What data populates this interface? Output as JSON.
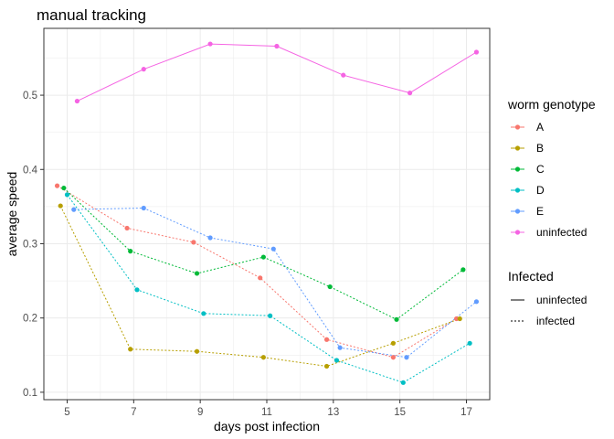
{
  "chart_data": {
    "type": "line",
    "title": "manual tracking",
    "xlabel": "days post infection",
    "ylabel": "average speed",
    "xlim": [
      4.3,
      17.7
    ],
    "ylim": [
      0.09,
      0.59
    ],
    "x_ticks": [
      5,
      7,
      9,
      11,
      13,
      15,
      17
    ],
    "y_ticks": [
      0.1,
      0.2,
      0.3,
      0.4,
      0.5
    ],
    "y_tick_labels": [
      "0.1",
      "0.2",
      "0.3",
      "0.4",
      "0.5"
    ],
    "grid": true,
    "series": [
      {
        "name": "A",
        "color": "#F8766D",
        "linetype": "infected",
        "x": [
          4.7,
          6.8,
          8.8,
          10.8,
          12.8,
          14.8,
          16.7
        ],
        "y": [
          0.378,
          0.321,
          0.302,
          0.254,
          0.171,
          0.147,
          0.199
        ]
      },
      {
        "name": "B",
        "color": "#B79F00",
        "linetype": "infected",
        "x": [
          4.8,
          6.9,
          8.9,
          10.9,
          12.8,
          14.8,
          16.8
        ],
        "y": [
          0.351,
          0.158,
          0.155,
          0.147,
          0.135,
          0.166,
          0.199
        ]
      },
      {
        "name": "C",
        "color": "#00BA38",
        "linetype": "infected",
        "x": [
          4.9,
          6.9,
          8.9,
          10.9,
          12.9,
          14.9,
          16.9
        ],
        "y": [
          0.375,
          0.29,
          0.26,
          0.282,
          0.242,
          0.198,
          0.265
        ]
      },
      {
        "name": "D",
        "color": "#00BFC4",
        "linetype": "infected",
        "x": [
          5.0,
          7.1,
          9.1,
          11.1,
          13.1,
          15.1,
          17.1
        ],
        "y": [
          0.366,
          0.238,
          0.206,
          0.203,
          0.143,
          0.113,
          0.166
        ]
      },
      {
        "name": "E",
        "color": "#619CFF",
        "linetype": "infected",
        "x": [
          5.2,
          7.3,
          9.3,
          11.2,
          13.2,
          15.2,
          17.3
        ],
        "y": [
          0.346,
          0.348,
          0.308,
          0.293,
          0.16,
          0.147,
          0.222
        ]
      },
      {
        "name": "uninfected",
        "color": "#F564E3",
        "linetype": "uninfected",
        "x": [
          5.3,
          7.3,
          9.3,
          11.3,
          13.3,
          15.3,
          17.3
        ],
        "y": [
          0.492,
          0.535,
          0.569,
          0.566,
          0.527,
          0.503,
          0.558
        ]
      }
    ],
    "legend": {
      "position": "right",
      "color_title": "worm genotype",
      "linetype_title": "Infected",
      "linetype_entries": [
        {
          "label": "uninfected",
          "dash": "solid"
        },
        {
          "label": "infected",
          "dash": "dotted"
        }
      ]
    }
  }
}
